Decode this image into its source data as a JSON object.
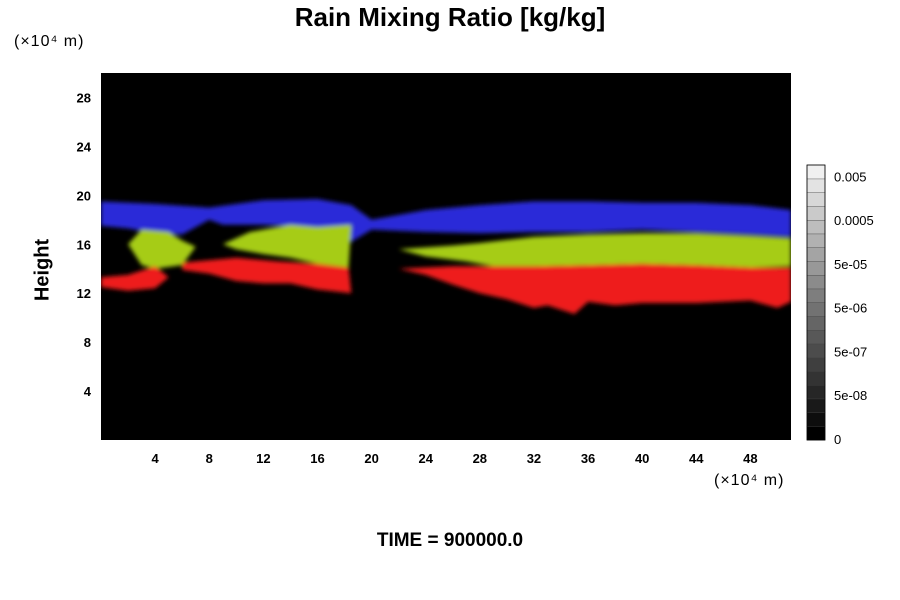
{
  "chart_data": {
    "type": "heatmap",
    "title": "Rain Mixing Ratio [kg/kg]",
    "ylabel": "Height",
    "xlabel": "",
    "x_unit": "(×10⁴ m)",
    "y_unit": "(×10⁴ m)",
    "xlim": [
      0,
      51
    ],
    "ylim": [
      0,
      30
    ],
    "x_ticks": [
      4,
      8,
      12,
      16,
      20,
      24,
      28,
      32,
      36,
      40,
      44,
      48
    ],
    "y_ticks": [
      4,
      8,
      12,
      16,
      20,
      24,
      28
    ],
    "background_color": "#000000",
    "bands": [
      {
        "color": "#2a2ad8",
        "points": [
          [
            0,
            19.5
          ],
          [
            4,
            19.3
          ],
          [
            8,
            19.0
          ],
          [
            12,
            19.6
          ],
          [
            16,
            19.7
          ],
          [
            18.5,
            19.2
          ],
          [
            20,
            18.0
          ],
          [
            24,
            18.8
          ],
          [
            28,
            19.2
          ],
          [
            32,
            19.5
          ],
          [
            36,
            19.5
          ],
          [
            40,
            19.4
          ],
          [
            44,
            19.4
          ],
          [
            48,
            19.2
          ],
          [
            51,
            18.8
          ],
          [
            51,
            16.6
          ],
          [
            48,
            16.8
          ],
          [
            44,
            17.0
          ],
          [
            40,
            17.2
          ],
          [
            36,
            17.0
          ],
          [
            32,
            17.0
          ],
          [
            28,
            16.9
          ],
          [
            24,
            17.0
          ],
          [
            20,
            17.2
          ],
          [
            18.5,
            16.2
          ],
          [
            16,
            17.4
          ],
          [
            12,
            17.6
          ],
          [
            9,
            17.6
          ],
          [
            8,
            18.0
          ],
          [
            6,
            16.8
          ],
          [
            4,
            16.9
          ],
          [
            2,
            17.3
          ],
          [
            0,
            17.5
          ]
        ]
      },
      {
        "color": "#a6cc14",
        "points": [
          [
            2,
            16.0
          ],
          [
            3,
            17.2
          ],
          [
            5,
            17.0
          ],
          [
            6,
            16.3
          ],
          [
            7,
            15.8
          ],
          [
            6,
            14.3
          ],
          [
            4,
            14.0
          ],
          [
            3,
            14.3
          ]
        ]
      },
      {
        "color": "#a6cc14",
        "points": [
          [
            9,
            16.0
          ],
          [
            11,
            17.0
          ],
          [
            14,
            17.6
          ],
          [
            16,
            17.4
          ],
          [
            18.5,
            17.6
          ],
          [
            18.3,
            14.1
          ],
          [
            16,
            14.4
          ],
          [
            14,
            14.9
          ],
          [
            12,
            15.2
          ],
          [
            10,
            15.6
          ]
        ]
      },
      {
        "color": "#a6cc14",
        "points": [
          [
            22,
            15.6
          ],
          [
            26,
            15.9
          ],
          [
            28,
            16.1
          ],
          [
            32,
            16.6
          ],
          [
            36,
            16.8
          ],
          [
            40,
            16.9
          ],
          [
            44,
            16.9
          ],
          [
            48,
            16.7
          ],
          [
            51,
            16.5
          ],
          [
            51,
            14.2
          ],
          [
            48,
            14.1
          ],
          [
            44,
            14.3
          ],
          [
            40,
            14.4
          ],
          [
            36,
            14.3
          ],
          [
            32,
            14.2
          ],
          [
            29,
            14.2
          ],
          [
            27,
            14.6
          ],
          [
            24,
            15.0
          ]
        ]
      },
      {
        "color": "#ee1f1f",
        "points": [
          [
            0,
            13.3
          ],
          [
            2,
            13.5
          ],
          [
            4,
            14.2
          ],
          [
            5,
            13.3
          ],
          [
            4,
            12.4
          ],
          [
            2,
            12.2
          ],
          [
            0,
            12.5
          ]
        ]
      },
      {
        "color": "#ee1f1f",
        "points": [
          [
            6,
            14.5
          ],
          [
            10,
            14.9
          ],
          [
            13,
            14.6
          ],
          [
            16,
            14.4
          ],
          [
            18.3,
            14.1
          ],
          [
            18.5,
            12.0
          ],
          [
            16,
            12.3
          ],
          [
            14,
            12.8
          ],
          [
            12,
            12.8
          ],
          [
            10,
            13.0
          ],
          [
            8,
            13.6
          ],
          [
            6,
            13.9
          ]
        ]
      },
      {
        "color": "#ee1f1f",
        "points": [
          [
            22,
            14.0
          ],
          [
            26,
            14.2
          ],
          [
            29,
            14.2
          ],
          [
            32,
            14.2
          ],
          [
            36,
            14.3
          ],
          [
            40,
            14.4
          ],
          [
            44,
            14.3
          ],
          [
            48,
            14.1
          ],
          [
            51,
            14.1
          ],
          [
            51,
            11.3
          ],
          [
            50,
            10.8
          ],
          [
            48,
            11.4
          ],
          [
            44,
            11.2
          ],
          [
            40,
            11.2
          ],
          [
            38,
            11.0
          ],
          [
            36,
            11.3
          ],
          [
            35,
            10.3
          ],
          [
            33,
            11.0
          ],
          [
            32,
            10.8
          ],
          [
            30,
            11.5
          ],
          [
            28,
            12.0
          ],
          [
            26,
            12.7
          ],
          [
            24,
            13.5
          ]
        ]
      }
    ],
    "colorbar": {
      "labels": [
        "0.005",
        "0.0005",
        "5e-05",
        "5e-06",
        "5e-07",
        "5e-08",
        "0"
      ],
      "levels": 20,
      "color_min": "#000000",
      "color_max": "#f0f0f0"
    }
  },
  "footer": {
    "time_label": "TIME = 900000.0"
  }
}
